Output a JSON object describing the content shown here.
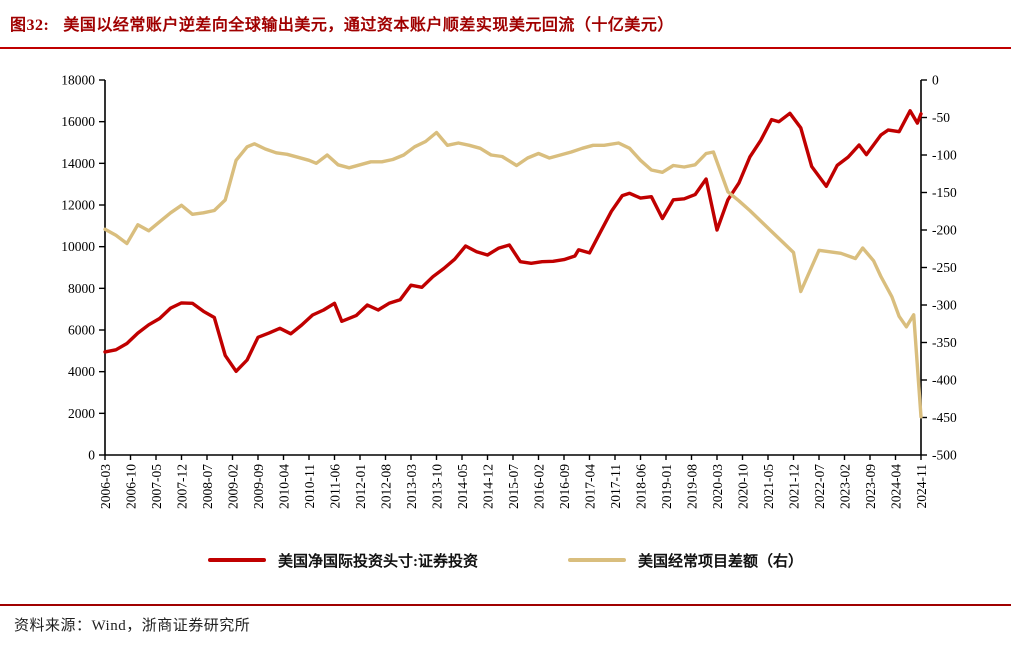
{
  "title": {
    "prefix": "图32:",
    "text": "美国以经常账户逆差向全球输出美元，通过资本账户顺差实现美元回流（十亿美元）"
  },
  "footer": {
    "text": "资料来源：Wind，浙商证券研究所"
  },
  "colors": {
    "title_red": "#a00000",
    "rule_top": "#c00000",
    "rule_bottom": "#a00000",
    "series_red": "#c00000",
    "series_tan": "#d9be7e",
    "axis": "#000000"
  },
  "chart_data": {
    "type": "line",
    "title": "美国以经常账户逆差向全球输出美元，通过资本账户顺差实现美元回流（十亿美元）",
    "grid": false,
    "legend_position": "bottom",
    "left_axis": {
      "min": 0,
      "max": 18000,
      "step": 2000,
      "tick_labels": [
        "0",
        "2000",
        "4000",
        "6000",
        "8000",
        "10000",
        "12000",
        "14000",
        "16000",
        "18000"
      ]
    },
    "right_axis": {
      "min": -500,
      "max": 0,
      "step": 50,
      "tick_labels": [
        "0",
        "-50",
        "-100",
        "-150",
        "-200",
        "-250",
        "-300",
        "-350",
        "-400",
        "-450",
        "-500"
      ]
    },
    "x_tick_labels": [
      "2006-03",
      "2006-10",
      "2007-05",
      "2007-12",
      "2008-07",
      "2009-02",
      "2009-09",
      "2010-04",
      "2010-11",
      "2011-06",
      "2012-01",
      "2012-08",
      "2013-03",
      "2013-10",
      "2014-05",
      "2014-12",
      "2015-07",
      "2016-02",
      "2016-09",
      "2017-04",
      "2017-11",
      "2018-06",
      "2019-01",
      "2019-08",
      "2020-03",
      "2020-10",
      "2021-05",
      "2021-12",
      "2022-07",
      "2023-02",
      "2023-09",
      "2024-04",
      "2024-11"
    ],
    "x_domain": {
      "start": "2006-03",
      "end": "2024-11"
    },
    "series": [
      {
        "name": "美国净国际投资头寸:证券投资",
        "axis": "left",
        "color": "#c00000",
        "points": [
          [
            "2006-03",
            4950
          ],
          [
            "2006-06",
            5050
          ],
          [
            "2006-09",
            5350
          ],
          [
            "2006-12",
            5850
          ],
          [
            "2007-03",
            6250
          ],
          [
            "2007-06",
            6550
          ],
          [
            "2007-09",
            7050
          ],
          [
            "2007-12",
            7300
          ],
          [
            "2008-03",
            7280
          ],
          [
            "2008-06",
            6900
          ],
          [
            "2008-09",
            6600
          ],
          [
            "2008-12",
            4780
          ],
          [
            "2009-03",
            4020
          ],
          [
            "2009-06",
            4560
          ],
          [
            "2009-09",
            5650
          ],
          [
            "2009-12",
            5850
          ],
          [
            "2010-03",
            6080
          ],
          [
            "2010-06",
            5820
          ],
          [
            "2010-09",
            6240
          ],
          [
            "2010-12",
            6720
          ],
          [
            "2011-03",
            6960
          ],
          [
            "2011-06",
            7280
          ],
          [
            "2011-08",
            6420
          ],
          [
            "2011-12",
            6700
          ],
          [
            "2012-03",
            7200
          ],
          [
            "2012-06",
            6960
          ],
          [
            "2012-09",
            7280
          ],
          [
            "2012-12",
            7450
          ],
          [
            "2013-03",
            8150
          ],
          [
            "2013-06",
            8050
          ],
          [
            "2013-09",
            8560
          ],
          [
            "2013-12",
            8950
          ],
          [
            "2014-03",
            9400
          ],
          [
            "2014-06",
            10030
          ],
          [
            "2014-09",
            9760
          ],
          [
            "2014-12",
            9600
          ],
          [
            "2015-03",
            9920
          ],
          [
            "2015-06",
            10080
          ],
          [
            "2015-09",
            9280
          ],
          [
            "2015-12",
            9200
          ],
          [
            "2016-03",
            9280
          ],
          [
            "2016-06",
            9300
          ],
          [
            "2016-09",
            9380
          ],
          [
            "2016-12",
            9550
          ],
          [
            "2017-01",
            9850
          ],
          [
            "2017-04",
            9700
          ],
          [
            "2017-07",
            10700
          ],
          [
            "2017-10",
            11700
          ],
          [
            "2018-01",
            12450
          ],
          [
            "2018-03",
            12560
          ],
          [
            "2018-06",
            12330
          ],
          [
            "2018-09",
            12400
          ],
          [
            "2018-12",
            11350
          ],
          [
            "2019-03",
            12250
          ],
          [
            "2019-06",
            12300
          ],
          [
            "2019-09",
            12500
          ],
          [
            "2019-12",
            13250
          ],
          [
            "2020-03",
            10800
          ],
          [
            "2020-06",
            12250
          ],
          [
            "2020-09",
            13050
          ],
          [
            "2020-12",
            14300
          ],
          [
            "2021-03",
            15100
          ],
          [
            "2021-06",
            16100
          ],
          [
            "2021-08",
            16000
          ],
          [
            "2021-11",
            16400
          ],
          [
            "2022-02",
            15700
          ],
          [
            "2022-05",
            13850
          ],
          [
            "2022-09",
            12900
          ],
          [
            "2022-12",
            13900
          ],
          [
            "2023-03",
            14300
          ],
          [
            "2023-06",
            14880
          ],
          [
            "2023-08",
            14420
          ],
          [
            "2023-12",
            15360
          ],
          [
            "2024-02",
            15600
          ],
          [
            "2024-05",
            15520
          ],
          [
            "2024-08",
            16520
          ],
          [
            "2024-10",
            15930
          ],
          [
            "2024-11",
            16380
          ]
        ]
      },
      {
        "name": "美国经常项目差额（右）",
        "axis": "right",
        "color": "#d9be7e",
        "points": [
          [
            "2006-03",
            -199
          ],
          [
            "2006-06",
            -207
          ],
          [
            "2006-09",
            -218
          ],
          [
            "2006-12",
            -193
          ],
          [
            "2007-03",
            -201
          ],
          [
            "2007-06",
            -189
          ],
          [
            "2007-09",
            -177
          ],
          [
            "2007-12",
            -167
          ],
          [
            "2008-03",
            -179
          ],
          [
            "2008-06",
            -177
          ],
          [
            "2008-09",
            -174
          ],
          [
            "2008-12",
            -160
          ],
          [
            "2009-03",
            -107
          ],
          [
            "2009-06",
            -89
          ],
          [
            "2009-08",
            -85
          ],
          [
            "2009-11",
            -92
          ],
          [
            "2010-02",
            -97
          ],
          [
            "2010-05",
            -99
          ],
          [
            "2010-08",
            -103
          ],
          [
            "2010-11",
            -107
          ],
          [
            "2011-01",
            -111
          ],
          [
            "2011-04",
            -100
          ],
          [
            "2011-07",
            -113
          ],
          [
            "2011-10",
            -117
          ],
          [
            "2012-01",
            -113
          ],
          [
            "2012-04",
            -109
          ],
          [
            "2012-07",
            -109
          ],
          [
            "2012-10",
            -106
          ],
          [
            "2013-01",
            -100
          ],
          [
            "2013-04",
            -89
          ],
          [
            "2013-07",
            -82
          ],
          [
            "2013-10",
            -70
          ],
          [
            "2014-01",
            -87
          ],
          [
            "2014-04",
            -84
          ],
          [
            "2014-07",
            -87
          ],
          [
            "2014-10",
            -91
          ],
          [
            "2015-01",
            -100
          ],
          [
            "2015-04",
            -102
          ],
          [
            "2015-08",
            -114
          ],
          [
            "2015-11",
            -104
          ],
          [
            "2016-02",
            -98
          ],
          [
            "2016-05",
            -104
          ],
          [
            "2016-08",
            -100
          ],
          [
            "2016-11",
            -96
          ],
          [
            "2017-02",
            -91
          ],
          [
            "2017-05",
            -87
          ],
          [
            "2017-08",
            -87
          ],
          [
            "2017-12",
            -84
          ],
          [
            "2018-03",
            -91
          ],
          [
            "2018-06",
            -107
          ],
          [
            "2018-09",
            -120
          ],
          [
            "2018-12",
            -123
          ],
          [
            "2019-03",
            -114
          ],
          [
            "2019-06",
            -116
          ],
          [
            "2019-09",
            -113
          ],
          [
            "2019-12",
            -98
          ],
          [
            "2020-02",
            -96
          ],
          [
            "2020-06",
            -149
          ],
          [
            "2020-09",
            -161
          ],
          [
            "2020-12",
            -174
          ],
          [
            "2021-03",
            -188
          ],
          [
            "2021-06",
            -202
          ],
          [
            "2021-09",
            -216
          ],
          [
            "2021-12",
            -230
          ],
          [
            "2022-02",
            -282
          ],
          [
            "2022-07",
            -227
          ],
          [
            "2022-10",
            -229
          ],
          [
            "2023-01",
            -231
          ],
          [
            "2023-05",
            -238
          ],
          [
            "2023-07",
            -224
          ],
          [
            "2023-10",
            -241
          ],
          [
            "2023-12",
            -262
          ],
          [
            "2024-03",
            -289
          ],
          [
            "2024-05",
            -315
          ],
          [
            "2024-07",
            -329
          ],
          [
            "2024-09",
            -313
          ],
          [
            "2024-11",
            -449
          ]
        ]
      }
    ]
  }
}
